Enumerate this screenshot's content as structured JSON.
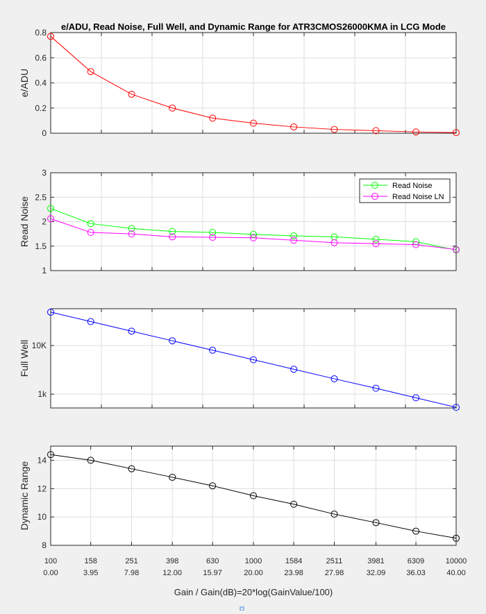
{
  "chart_data": {
    "title": "e/ADU, Read Noise, Full Well, and Dynamic Range for ATR3CMOS26000KMA in LCG Mode",
    "xlabel": "Gain / Gain(dB)=20*log(GainValue/100)",
    "x_db": [
      0.0,
      3.95,
      7.98,
      12.0,
      15.97,
      20.0,
      23.98,
      27.98,
      32.09,
      36.03,
      40.0
    ],
    "x_tick_labels_gain": [
      "100",
      "158",
      "251",
      "398",
      "630",
      "1000",
      "1584",
      "2511",
      "3981",
      "6309",
      "10000"
    ],
    "x_tick_labels_db": [
      "0.00",
      "3.95",
      "7.98",
      "12.00",
      "15.97",
      "20.00",
      "23.98",
      "27.98",
      "32.09",
      "36.03",
      "40.00"
    ],
    "xlim": [
      0,
      40
    ],
    "subplots": [
      {
        "type": "line",
        "ylabel": "e/ADU",
        "ylim": [
          0,
          0.8
        ],
        "yscale": "linear",
        "yticks": [
          0,
          0.2,
          0.4,
          0.6,
          0.8
        ],
        "ytick_labels": [
          "0",
          "0.2",
          "0.4",
          "0.6",
          "0.8"
        ],
        "grid": true,
        "series": [
          {
            "color": "#ff0000",
            "marker": "circle",
            "values": [
              0.77,
              0.49,
              0.31,
              0.2,
              0.12,
              0.08,
              0.05,
              0.03,
              0.02,
              0.01,
              0.005
            ]
          }
        ]
      },
      {
        "type": "line",
        "ylabel": "Read Noise",
        "ylim": [
          1,
          3
        ],
        "yscale": "linear",
        "yticks": [
          1,
          1.5,
          2,
          2.5,
          3
        ],
        "ytick_labels": [
          "1",
          "1.5",
          "2",
          "2.5",
          "3"
        ],
        "grid": true,
        "legend": "top-right",
        "series": [
          {
            "name": "Read Noise",
            "color": "#00ff00",
            "marker": "circle",
            "values": [
              2.27,
              1.96,
              1.86,
              1.8,
              1.78,
              1.74,
              1.71,
              1.69,
              1.64,
              1.59,
              1.42
            ]
          },
          {
            "name": "Read Noise LN",
            "color": "#ff00ff",
            "marker": "circle",
            "values": [
              2.06,
              1.78,
              1.75,
              1.69,
              1.68,
              1.67,
              1.62,
              1.57,
              1.55,
              1.53,
              1.43
            ]
          }
        ]
      },
      {
        "type": "line",
        "ylabel": "Full Well",
        "ylim": [
          520,
          57000
        ],
        "yscale": "log",
        "yticks": [
          1000,
          10000
        ],
        "ytick_labels": [
          "1k",
          "10K"
        ],
        "grid": true,
        "series": [
          {
            "color": "#0000ff",
            "marker": "circle",
            "values": [
              48500,
              31000,
              19700,
              12500,
              8000,
              5100,
              3250,
              2070,
              1320,
              840,
              535
            ]
          }
        ]
      },
      {
        "type": "line",
        "ylabel": "Dynamic Range",
        "ylim": [
          8,
          15
        ],
        "yscale": "linear",
        "yticks": [
          8,
          10,
          12,
          14
        ],
        "ytick_labels": [
          "8",
          "10",
          "12",
          "14"
        ],
        "grid": true,
        "series": [
          {
            "color": "#000000",
            "marker": "circle",
            "values": [
              14.4,
              14.0,
              13.4,
              12.8,
              12.2,
              11.5,
              10.9,
              10.2,
              9.6,
              9.0,
              8.5
            ]
          }
        ]
      }
    ]
  }
}
